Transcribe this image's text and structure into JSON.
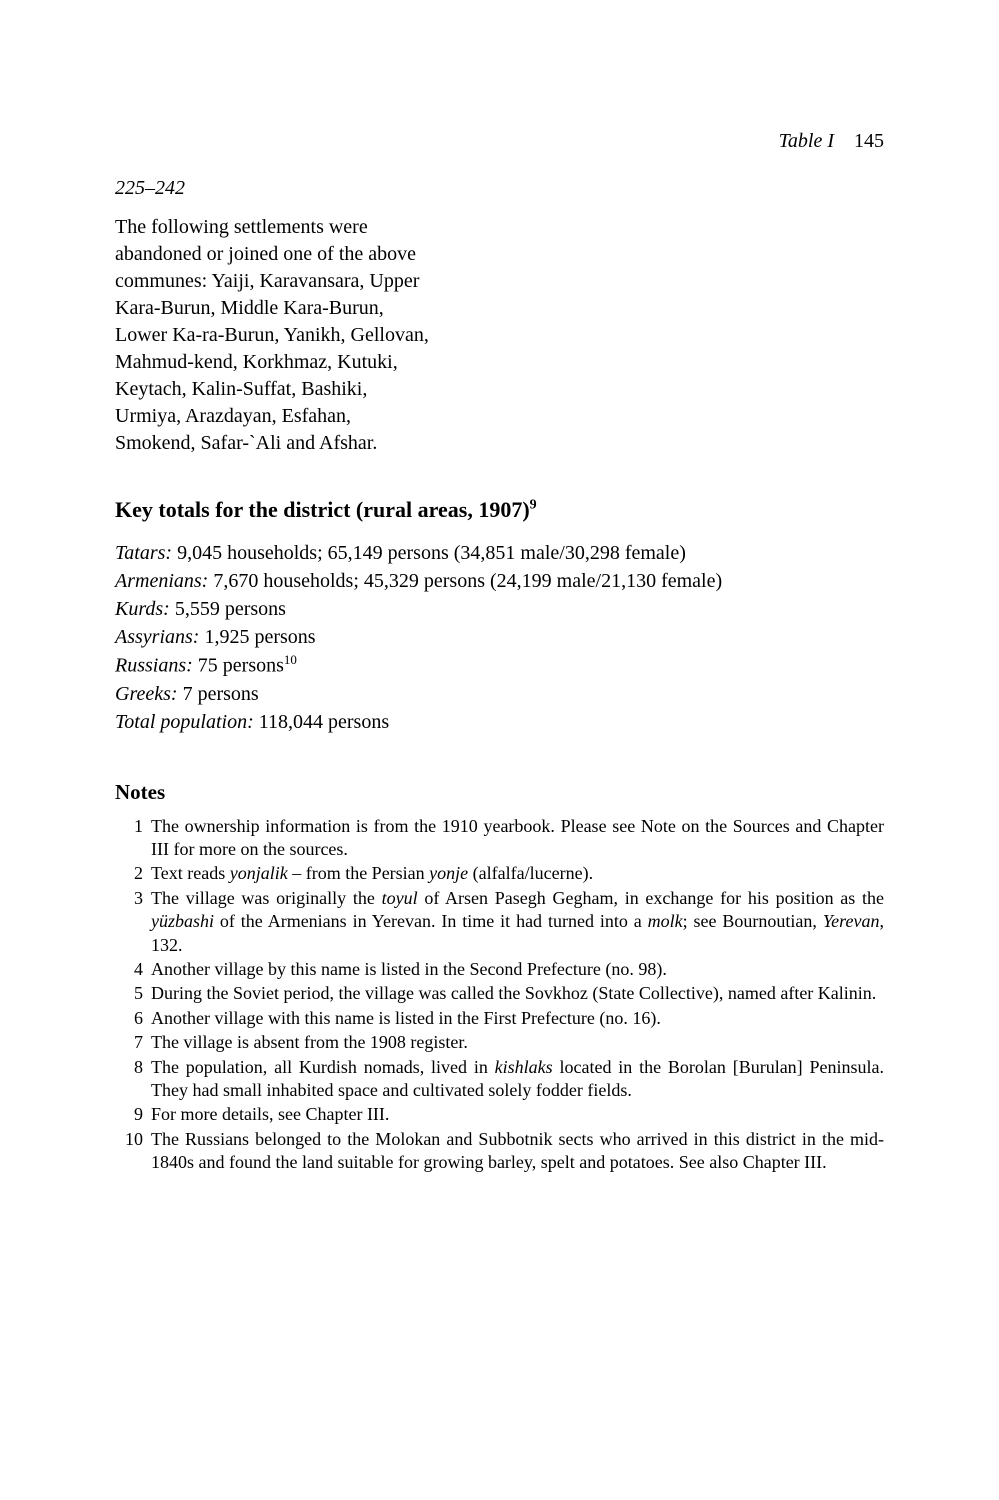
{
  "runningHead": {
    "label": "Table I",
    "pageNum": "145"
  },
  "range": "225–242",
  "paragraph": "The following settlements were abandoned or joined one of the above communes: Yaiji, Karavansara, Upper Kara-Burun, Middle Kara-Burun, Lower Ka-ra-Burun, Yanikh, Gellovan, Mahmud-kend, Korkhmaz, Kutuki, Keytach, Kalin-Suffat, Bashiki, Urmiya, Arazdayan, Esfahan, Smokend, Safar-`Ali and Afshar.",
  "totalsHeading": {
    "text": "Key totals for the district (rural areas, 1907)",
    "sup": "9"
  },
  "totals": [
    {
      "label": "Tatars:",
      "value": " 9,045 households; 65,149 persons (34,851 male/30,298 female)"
    },
    {
      "label": "Armenians:",
      "value": " 7,670 households; 45,329 persons (24,199 male/21,130 female)"
    },
    {
      "label": "Kurds:",
      "value": " 5,559 persons"
    },
    {
      "label": "Assyrians:",
      "value": " 1,925 persons"
    },
    {
      "label": "Russians:",
      "value": " 75 persons",
      "sup": "10"
    },
    {
      "label": "Greeks:",
      "value": " 7 persons"
    },
    {
      "label": "Total population:",
      "value": " 118,044 persons"
    }
  ],
  "notesHeading": "Notes",
  "notes": [
    {
      "n": "1",
      "html": "The ownership information is from the 1910 yearbook. Please see Note on the Sources and Chapter III for more on the sources."
    },
    {
      "n": "2",
      "html": "Text reads <span class=\"ital\">yonjalik</span> – from the Persian <span class=\"ital\">yonje</span> (alfalfa/lucerne)."
    },
    {
      "n": "3",
      "html": "The village was originally the <span class=\"ital\">toyul</span> of Arsen Pasegh Gegham, in exchange for his position as the <span class=\"ital\">yüzbashi</span> of the Armenians in Yerevan. In time it had turned into a <span class=\"ital\">molk</span>; see Bournoutian, <span class=\"ital\">Yerevan</span>, 132."
    },
    {
      "n": "4",
      "html": "Another village by this name is listed in the Second Prefecture (no. 98)."
    },
    {
      "n": "5",
      "html": "During the Soviet period, the village was called the Sovkhoz (State Collective), named after Kalinin."
    },
    {
      "n": "6",
      "html": "Another village with this name is listed in the First Prefecture (no. 16)."
    },
    {
      "n": "7",
      "html": "The village is absent from the 1908 register."
    },
    {
      "n": "8",
      "html": "The population, all Kurdish nomads, lived in <span class=\"ital\">kishlaks</span> located in the Borolan [Burulan] Peninsula. They had small inhabited space and cultivated solely fodder fields."
    },
    {
      "n": "9",
      "html": "For more details, see Chapter III."
    },
    {
      "n": "10",
      "html": "The Russians belonged to the Molokan and Subbotnik sects who arrived in this district in the mid-1840s and found the land suitable for growing barley, spelt and potatoes. See also Chapter III."
    }
  ]
}
